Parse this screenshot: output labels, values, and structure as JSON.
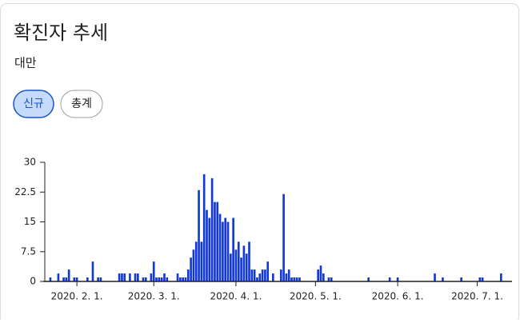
{
  "chart_data": {
    "type": "bar",
    "title": "확진자 추세",
    "subtitle": "대만",
    "tabs": [
      "신규",
      "총계"
    ],
    "selected_tab": 0,
    "color": "#1238d6",
    "ylim": [
      0,
      30
    ],
    "yticks": [
      0,
      7.5,
      15,
      22.5,
      30
    ],
    "categories": [
      null,
      null,
      null,
      null,
      null,
      null,
      null,
      null,
      null,
      null,
      null,
      "2020. 2. 1.",
      null,
      null,
      null,
      null,
      null,
      null,
      null,
      null,
      null,
      null,
      null,
      null,
      null,
      null,
      null,
      null,
      null,
      null,
      null,
      null,
      null,
      null,
      null,
      null,
      null,
      null,
      null,
      null,
      "2020. 3. 1.",
      null,
      null,
      null,
      null,
      null,
      null,
      null,
      null,
      null,
      null,
      null,
      null,
      null,
      null,
      null,
      null,
      null,
      null,
      null,
      null,
      null,
      null,
      null,
      null,
      null,
      null,
      null,
      null,
      null,
      null,
      "2020. 4. 1.",
      null,
      null,
      null,
      null,
      null,
      null,
      null,
      null,
      null,
      null,
      null,
      null,
      null,
      null,
      null,
      null,
      null,
      null,
      null,
      null,
      null,
      null,
      null,
      null,
      null,
      null,
      null,
      null,
      null,
      "2020. 5. 1.",
      null,
      null,
      null,
      null,
      null,
      null,
      null,
      null,
      null,
      null,
      null,
      null,
      null,
      null,
      null,
      null,
      null,
      null,
      null,
      null,
      null,
      null,
      null,
      null,
      null,
      null,
      null,
      null,
      null,
      null,
      "2020. 6. 1.",
      null,
      null,
      null,
      null,
      null,
      null,
      null,
      null,
      null,
      null,
      null,
      null,
      null,
      null,
      null,
      null,
      null,
      null,
      null,
      null,
      null,
      null,
      null,
      null,
      null,
      null,
      null,
      null,
      null,
      "2020. 7. 1.",
      null,
      null,
      null,
      null,
      null,
      null,
      null,
      null,
      null
    ],
    "values": [
      0,
      1,
      0,
      0,
      2,
      0,
      1,
      1,
      3,
      0,
      1,
      1,
      0,
      0,
      0,
      1,
      0,
      5,
      0,
      1,
      1,
      0,
      0,
      0,
      0,
      0,
      0,
      2,
      2,
      2,
      0,
      2,
      0,
      2,
      2,
      0,
      1,
      1,
      0,
      2,
      5,
      1,
      1,
      1,
      2,
      1,
      0,
      0,
      0,
      2,
      1,
      1,
      1,
      3,
      6,
      8,
      10,
      23,
      10,
      27,
      18,
      16,
      26,
      20,
      20,
      17,
      15,
      16,
      15,
      7,
      16,
      8,
      10,
      6,
      9,
      7,
      10,
      3,
      3,
      1,
      2,
      3,
      3,
      5,
      0,
      2,
      0,
      0,
      3,
      22,
      2,
      3,
      1,
      1,
      1,
      1,
      0,
      0,
      0,
      0,
      0,
      0,
      3,
      4,
      2,
      0,
      1,
      1,
      0,
      0,
      0,
      0,
      0,
      0,
      0,
      0,
      0,
      0,
      0,
      0,
      0,
      1,
      0,
      0,
      0,
      0,
      0,
      0,
      0,
      1,
      0,
      0,
      1,
      0,
      0,
      0,
      0,
      0,
      0,
      0,
      0,
      0,
      0,
      0,
      0,
      0,
      2,
      0,
      0,
      1,
      0,
      0,
      0,
      0,
      0,
      0,
      1,
      0,
      0,
      0,
      0,
      0,
      0,
      1,
      1,
      0,
      0,
      0,
      0,
      0,
      0,
      2
    ]
  }
}
